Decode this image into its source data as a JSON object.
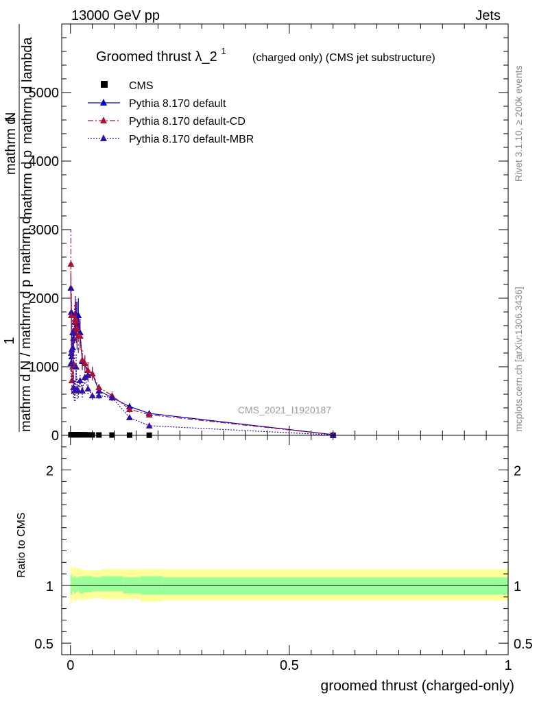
{
  "header": {
    "left": "13000 GeV pp",
    "right": "Jets"
  },
  "side_labels": {
    "rivet": "Rivet 3.1.10, ≥ 200k events",
    "mcplots": "mcplots.cern.ch [arXiv:1306.3436]"
  },
  "watermark": "CMS_2021_I1920187",
  "colors": {
    "data": "#000000",
    "default": "#0000cc",
    "cd": "#aa1133",
    "mbr": "#3311aa",
    "band_inner": "#99ff99",
    "band_outer": "#ffff99"
  },
  "chart_data": [
    {
      "type": "line",
      "title_main": "Groomed thrust",
      "title_symbol": "λ_2",
      "title_sup": "1",
      "title_rest": "(charged only) (CMS jet substructure)",
      "ylabel_top": "1",
      "ylabel_num_a": "mathrm d",
      "ylabel_num_b": "N",
      "ylabel_den_a": "mathrm d p",
      "ylabel_den_b": "mathrm d lambda",
      "ylabel_front": "mathrm d N / mathrm d p",
      "ylabel_front_rest": "mathrm d",
      "ylim": [
        0,
        6000
      ],
      "xlim": [
        -0.02,
        1.0
      ],
      "y_ticks": [
        "0",
        "1000",
        "2000",
        "3000",
        "4000",
        "5000"
      ],
      "legend": [
        {
          "label": "CMS",
          "style": "square"
        },
        {
          "label": "Pythia 8.170 default",
          "style": "solid"
        },
        {
          "label": "Pythia 8.170 default-CD",
          "style": "dashdot"
        },
        {
          "label": "Pythia 8.170 default-MBR",
          "style": "dotted"
        }
      ],
      "series": [
        {
          "name": "CMS",
          "x": [
            0.001,
            0.003,
            0.005,
            0.007,
            0.009,
            0.011,
            0.013,
            0.015,
            0.018,
            0.022,
            0.027,
            0.033,
            0.04,
            0.05,
            0.065,
            0.095,
            0.135,
            0.18,
            0.6
          ],
          "y": [
            8,
            9,
            9,
            9,
            9,
            9,
            9,
            8,
            8,
            8,
            8,
            8,
            7,
            6,
            5,
            4,
            3,
            2,
            0.5
          ]
        },
        {
          "name": "Pythia 8.170 default",
          "x": [
            0.001,
            0.002,
            0.003,
            0.005,
            0.007,
            0.009,
            0.011,
            0.013,
            0.015,
            0.018,
            0.022,
            0.027,
            0.033,
            0.04,
            0.05,
            0.065,
            0.095,
            0.135,
            0.18,
            0.6
          ],
          "y": [
            2150,
            1800,
            1150,
            1280,
            1420,
            1520,
            1780,
            1650,
            1600,
            1750,
            1500,
            1080,
            1050,
            880,
            900,
            650,
            550,
            420,
            320,
            10
          ],
          "err": [
            200,
            150,
            120,
            150,
            150,
            180,
            250,
            300,
            350,
            250,
            200,
            120,
            100,
            100,
            80,
            60,
            50,
            50,
            30,
            5
          ]
        },
        {
          "name": "Pythia 8.170 default-CD",
          "x": [
            0.001,
            0.002,
            0.003,
            0.005,
            0.007,
            0.009,
            0.011,
            0.013,
            0.015,
            0.018,
            0.022,
            0.027,
            0.033,
            0.04,
            0.05,
            0.065,
            0.095,
            0.135,
            0.18,
            0.6
          ],
          "y": [
            2500,
            1750,
            800,
            1000,
            1050,
            1650,
            1700,
            1680,
            1560,
            1450,
            1450,
            1100,
            1050,
            950,
            900,
            700,
            580,
            380,
            300,
            10
          ],
          "err": [
            500,
            400,
            200,
            200,
            200,
            250,
            250,
            300,
            250,
            250,
            200,
            150,
            120,
            120,
            100,
            80,
            60,
            50,
            30,
            5
          ]
        },
        {
          "name": "Pythia 8.170 default-MBR",
          "x": [
            0.001,
            0.002,
            0.003,
            0.005,
            0.007,
            0.009,
            0.011,
            0.013,
            0.015,
            0.018,
            0.022,
            0.027,
            0.033,
            0.04,
            0.05,
            0.065,
            0.095,
            0.135,
            0.18,
            0.6
          ],
          "y": [
            1050,
            1200,
            1250,
            1500,
            700,
            650,
            650,
            1000,
            680,
            650,
            800,
            650,
            850,
            680,
            580,
            580,
            550,
            260,
            140,
            5
          ],
          "err": [
            200,
            200,
            200,
            200,
            150,
            150,
            150,
            200,
            150,
            100,
            100,
            100,
            100,
            80,
            60,
            50,
            50,
            40,
            20,
            3
          ]
        }
      ]
    },
    {
      "type": "area",
      "ylabel": "Ratio to CMS",
      "xlabel": "groomed thrust (charged-only)",
      "ylim": [
        0.4,
        2.3
      ],
      "xlim": [
        -0.02,
        1.0
      ],
      "y_ticks": [
        "0.5",
        "1",
        "2"
      ],
      "x_ticks": [
        "0",
        "0.5",
        "1"
      ],
      "bins": [
        0.0,
        0.004,
        0.008,
        0.012,
        0.016,
        0.02,
        0.025,
        0.03,
        0.05,
        0.07,
        0.12,
        0.16,
        0.21,
        1.0
      ],
      "inner_lo": [
        0.92,
        0.95,
        0.93,
        0.94,
        0.95,
        0.93,
        0.93,
        0.94,
        0.95,
        0.95,
        0.93,
        0.92,
        0.92
      ],
      "inner_hi": [
        1.09,
        1.07,
        1.08,
        1.07,
        1.07,
        1.08,
        1.08,
        1.08,
        1.07,
        1.08,
        1.07,
        1.08,
        1.07
      ],
      "outer_lo": [
        0.84,
        0.88,
        0.86,
        0.87,
        0.88,
        0.87,
        0.87,
        0.88,
        0.89,
        0.88,
        0.88,
        0.86,
        0.87
      ],
      "outer_hi": [
        1.17,
        1.15,
        1.16,
        1.15,
        1.15,
        1.14,
        1.14,
        1.13,
        1.13,
        1.14,
        1.14,
        1.14,
        1.14
      ],
      "reference": 1
    }
  ]
}
